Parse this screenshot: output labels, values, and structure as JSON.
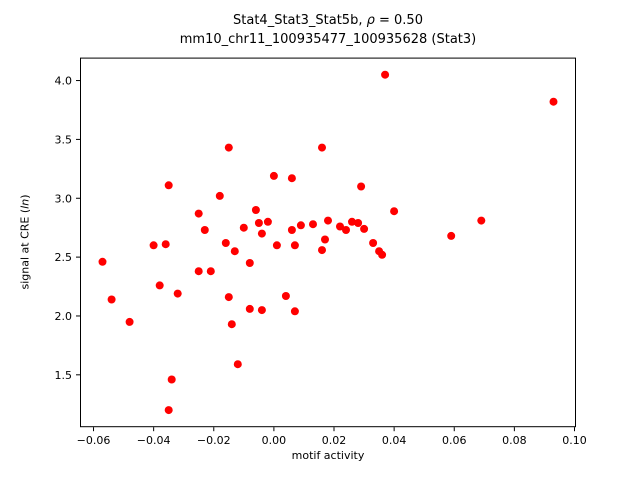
{
  "chart_data": {
    "type": "scatter",
    "title": "Stat4_Stat3_Stat5b, ρ = 0.50",
    "title_parts": {
      "prefix": "Stat4_Stat3_Stat5b, ",
      "rho": "ρ",
      "suffix": " = 0.50"
    },
    "subtitle": "mm10_chr11_100935477_100935628 (Stat3)",
    "xlabel": "motif activity",
    "ylabel": "signal at CRE (ln)",
    "ylabel_parts": {
      "prefix": "signal at CRE (",
      "italic": "ln",
      "suffix": ")"
    },
    "marker_color": "#ff0000",
    "axis_color": "#000000",
    "grid": false,
    "legend": null,
    "xlim": [
      -0.0645,
      0.1005
    ],
    "ylim": [
      1.055,
      4.195
    ],
    "xtick_values": [
      -0.06,
      -0.04,
      -0.02,
      0.0,
      0.02,
      0.04,
      0.06,
      0.08,
      0.1
    ],
    "xtick_labels": [
      "−0.06",
      "−0.04",
      "−0.02",
      "0.00",
      "0.02",
      "0.04",
      "0.06",
      "0.08",
      "0.10"
    ],
    "ytick_values": [
      1.5,
      2.0,
      2.5,
      3.0,
      3.5,
      4.0
    ],
    "ytick_labels": [
      "1.5",
      "2.0",
      "2.5",
      "3.0",
      "3.5",
      "4.0"
    ],
    "points": [
      [
        -0.057,
        2.46
      ],
      [
        -0.054,
        2.14
      ],
      [
        -0.048,
        1.95
      ],
      [
        -0.04,
        2.6
      ],
      [
        -0.038,
        2.26
      ],
      [
        -0.036,
        2.61
      ],
      [
        -0.035,
        3.11
      ],
      [
        -0.035,
        1.2
      ],
      [
        -0.034,
        1.46
      ],
      [
        -0.032,
        2.19
      ],
      [
        -0.025,
        2.87
      ],
      [
        -0.025,
        2.38
      ],
      [
        -0.023,
        2.73
      ],
      [
        -0.021,
        2.38
      ],
      [
        -0.018,
        3.02
      ],
      [
        -0.016,
        2.62
      ],
      [
        -0.015,
        3.43
      ],
      [
        -0.015,
        2.16
      ],
      [
        -0.014,
        1.93
      ],
      [
        -0.013,
        2.55
      ],
      [
        -0.012,
        1.59
      ],
      [
        -0.01,
        2.75
      ],
      [
        -0.008,
        2.45
      ],
      [
        -0.008,
        2.06
      ],
      [
        -0.006,
        2.9
      ],
      [
        -0.005,
        2.79
      ],
      [
        -0.004,
        2.7
      ],
      [
        -0.004,
        2.05
      ],
      [
        -0.002,
        2.8
      ],
      [
        0.0,
        3.19
      ],
      [
        0.001,
        2.6
      ],
      [
        0.004,
        2.17
      ],
      [
        0.006,
        3.17
      ],
      [
        0.006,
        2.73
      ],
      [
        0.007,
        2.6
      ],
      [
        0.007,
        2.04
      ],
      [
        0.009,
        2.77
      ],
      [
        0.013,
        2.78
      ],
      [
        0.016,
        3.43
      ],
      [
        0.016,
        2.56
      ],
      [
        0.017,
        2.65
      ],
      [
        0.018,
        2.81
      ],
      [
        0.022,
        2.76
      ],
      [
        0.024,
        2.73
      ],
      [
        0.026,
        2.8
      ],
      [
        0.028,
        2.79
      ],
      [
        0.029,
        3.1
      ],
      [
        0.03,
        2.74
      ],
      [
        0.033,
        2.62
      ],
      [
        0.035,
        2.55
      ],
      [
        0.036,
        2.52
      ],
      [
        0.037,
        4.05
      ],
      [
        0.04,
        2.89
      ],
      [
        0.059,
        2.68
      ],
      [
        0.069,
        2.81
      ],
      [
        0.093,
        3.82
      ]
    ]
  }
}
